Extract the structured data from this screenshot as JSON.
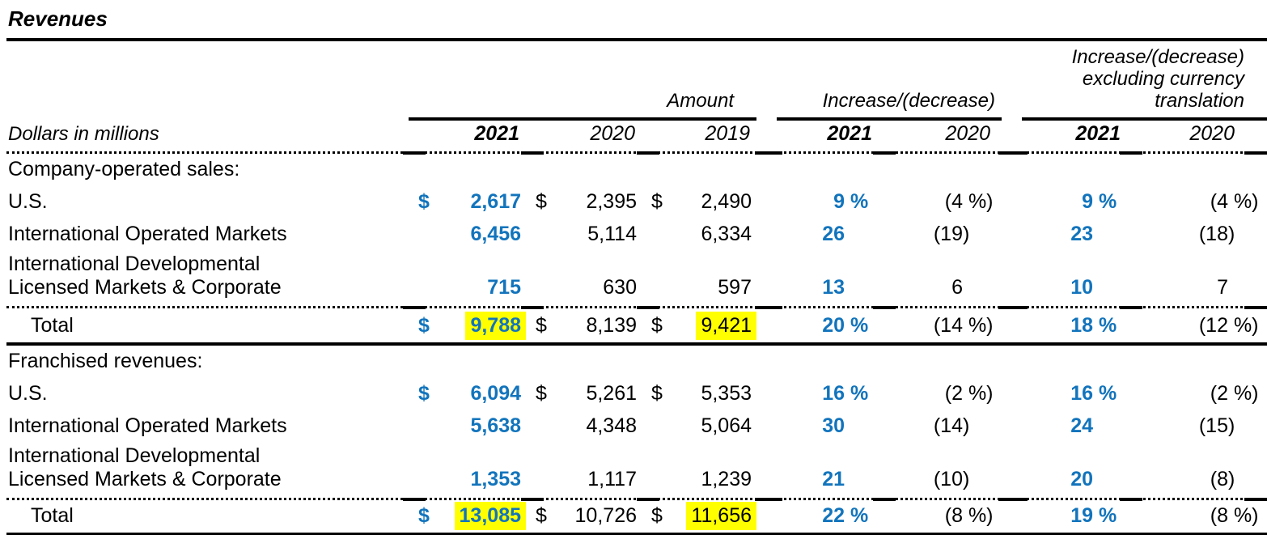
{
  "title": "Revenues",
  "unit_label": "Dollars in millions",
  "colors": {
    "accent_blue": "#1274BC",
    "highlight_yellow": "#FFFF00"
  },
  "header": {
    "groups": [
      {
        "label": "Amount",
        "years": [
          "2021",
          "2020",
          "2019"
        ]
      },
      {
        "label": "Increase/(decrease)",
        "years": [
          "2021",
          "2020"
        ]
      },
      {
        "label": "Increase/(decrease) excluding currency translation",
        "years": [
          "2021",
          "2020"
        ]
      }
    ]
  },
  "sections": [
    {
      "heading": "Company-operated sales:",
      "rows": [
        {
          "label": "U.S.",
          "amt": [
            {
              "cur": "$",
              "val": "2,617"
            },
            {
              "cur": "$",
              "val": "2,395"
            },
            {
              "cur": "$",
              "val": "2,490"
            }
          ],
          "pct": [
            {
              "num": "9",
              "suf": " %"
            },
            {
              "num": "(4",
              "suf": " %)"
            },
            {
              "num": "9",
              "suf": " %"
            },
            {
              "num": "(4",
              "suf": " %)"
            }
          ]
        },
        {
          "label": "International Operated Markets",
          "amt": [
            {
              "cur": "",
              "val": "6,456"
            },
            {
              "cur": "",
              "val": "5,114"
            },
            {
              "cur": "",
              "val": "6,334"
            }
          ],
          "pct": [
            {
              "num": "26",
              "suf": ""
            },
            {
              "num": "(19",
              "suf": ")"
            },
            {
              "num": "23",
              "suf": ""
            },
            {
              "num": "(18",
              "suf": ")"
            }
          ]
        },
        {
          "label": "International Developmental",
          "label2": "Licensed Markets & Corporate",
          "amt": [
            {
              "cur": "",
              "val": "715"
            },
            {
              "cur": "",
              "val": "630"
            },
            {
              "cur": "",
              "val": "597"
            }
          ],
          "pct": [
            {
              "num": "13",
              "suf": ""
            },
            {
              "num": "6",
              "suf": ""
            },
            {
              "num": "10",
              "suf": ""
            },
            {
              "num": "7",
              "suf": ""
            }
          ]
        }
      ],
      "total": {
        "label": "Total",
        "amt": [
          {
            "cur": "$",
            "val": "9,788"
          },
          {
            "cur": "$",
            "val": "8,139"
          },
          {
            "cur": "$",
            "val": "9,421"
          }
        ],
        "pct": [
          {
            "num": "20",
            "suf": " %"
          },
          {
            "num": "(14",
            "suf": " %)"
          },
          {
            "num": "18",
            "suf": " %"
          },
          {
            "num": "(12",
            "suf": " %)"
          }
        ]
      }
    },
    {
      "heading": "Franchised revenues:",
      "rows": [
        {
          "label": "U.S.",
          "amt": [
            {
              "cur": "$",
              "val": "6,094"
            },
            {
              "cur": "$",
              "val": "5,261"
            },
            {
              "cur": "$",
              "val": "5,353"
            }
          ],
          "pct": [
            {
              "num": "16",
              "suf": " %"
            },
            {
              "num": "(2",
              "suf": " %)"
            },
            {
              "num": "16",
              "suf": " %"
            },
            {
              "num": "(2",
              "suf": " %)"
            }
          ]
        },
        {
          "label": "International Operated Markets",
          "amt": [
            {
              "cur": "",
              "val": "5,638"
            },
            {
              "cur": "",
              "val": "4,348"
            },
            {
              "cur": "",
              "val": "5,064"
            }
          ],
          "pct": [
            {
              "num": "30",
              "suf": ""
            },
            {
              "num": "(14",
              "suf": ")"
            },
            {
              "num": "24",
              "suf": ""
            },
            {
              "num": "(15",
              "suf": ")"
            }
          ]
        },
        {
          "label": "International Developmental",
          "label2": "Licensed Markets & Corporate",
          "amt": [
            {
              "cur": "",
              "val": "1,353"
            },
            {
              "cur": "",
              "val": "1,117"
            },
            {
              "cur": "",
              "val": "1,239"
            }
          ],
          "pct": [
            {
              "num": "21",
              "suf": ""
            },
            {
              "num": "(10",
              "suf": ")"
            },
            {
              "num": "20",
              "suf": ""
            },
            {
              "num": "(8",
              "suf": ")"
            }
          ]
        }
      ],
      "total": {
        "label": "Total",
        "amt": [
          {
            "cur": "$",
            "val": "13,085"
          },
          {
            "cur": "$",
            "val": "10,726"
          },
          {
            "cur": "$",
            "val": "11,656"
          }
        ],
        "pct": [
          {
            "num": "22",
            "suf": " %"
          },
          {
            "num": "(8",
            "suf": " %)"
          },
          {
            "num": "19",
            "suf": " %"
          },
          {
            "num": "(8",
            "suf": " %)"
          }
        ]
      }
    }
  ],
  "highlighted_values": [
    "9,788",
    "9,421",
    "13,085",
    "11,656"
  ]
}
